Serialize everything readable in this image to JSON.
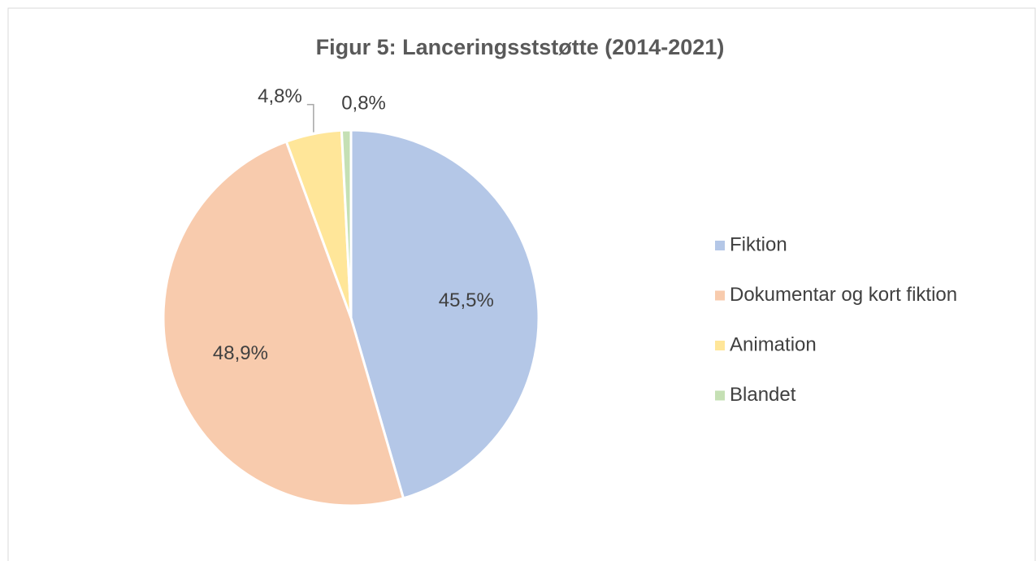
{
  "chart_data": {
    "type": "pie",
    "title": "Figur 5: Lanceringsststøtte (2014-2021)",
    "categories": [
      "Fiktion",
      "Dokumentar og kort fiktion",
      "Animation",
      "Blandet"
    ],
    "values": [
      45.5,
      48.9,
      4.8,
      0.8
    ],
    "value_labels": [
      "45,5%",
      "48,9%",
      "4,8%",
      "0,8%"
    ],
    "colors": [
      "#b4c7e7",
      "#f8cbad",
      "#ffe699",
      "#c5e0b4"
    ],
    "legend": "right"
  }
}
